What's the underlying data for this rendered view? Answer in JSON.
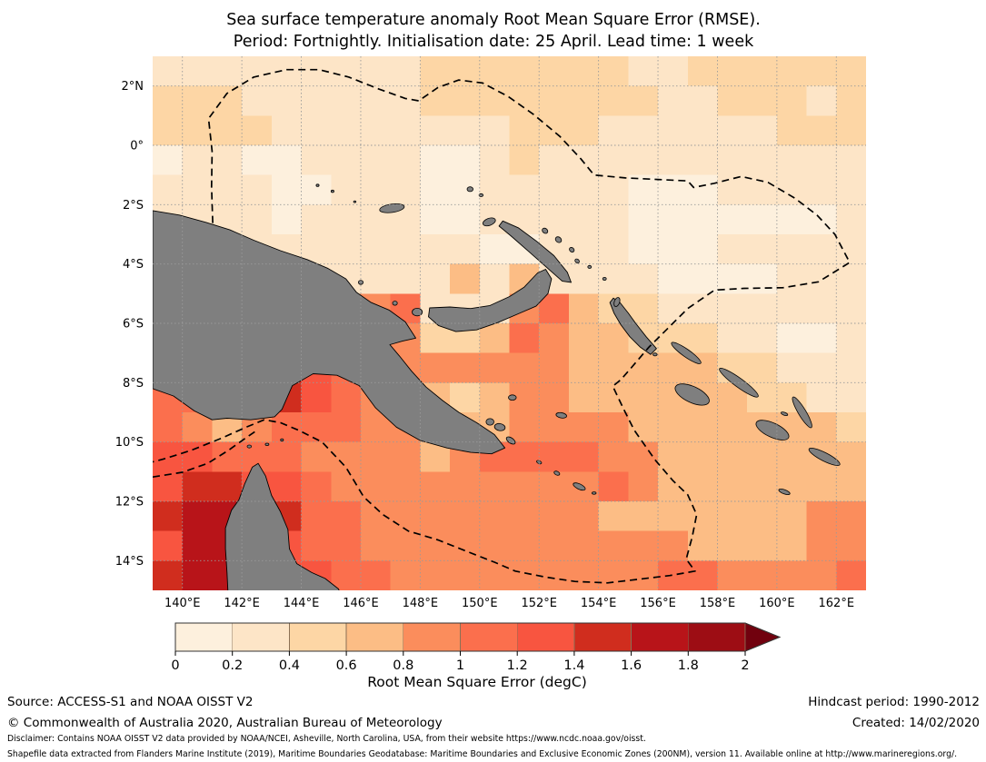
{
  "title": {
    "line1": "Sea surface temperature anomaly Root Mean Square Error (RMSE).",
    "line2": "Period: Fortnightly. Initialisation date: 25 April. Lead time: 1 week"
  },
  "colorbar": {
    "label": "Root Mean Square Error (degC)",
    "ticks": [
      "0",
      "0.2",
      "0.4",
      "0.6",
      "0.8",
      "1",
      "1.2",
      "1.4",
      "1.6",
      "1.8",
      "2"
    ],
    "colors": [
      "#fdf0dd",
      "#fde5c7",
      "#fdd6a5",
      "#fcbd85",
      "#fb8d5c",
      "#fb6f4d",
      "#f85540",
      "#d02d1e",
      "#b81419",
      "#9d0d14"
    ],
    "arrow_color": "#71010e",
    "edge_color": "#8a7055"
  },
  "footer": {
    "source": "Source: ACCESS-S1 and NOAA OISST V2",
    "hindcast": "Hindcast period: 1990-2012",
    "copyright": "© Commonwealth of Australia 2020, Australian Bureau of Meteorology",
    "created": "Created: 14/02/2020",
    "disclaimer1": "Disclaimer: Contains NOAA OISST V2 data provided by NOAA/NCEI, Asheville, North Carolina, USA, from their website https://www.ncdc.noaa.gov/oisst.",
    "disclaimer2": "Shapefile data extracted from Flanders Marine Institute (2019), Maritime Boundaries Geodatabase: Maritime Boundaries and Exclusive Economic Zones (200NM), version 11. Available online at http://www.marineregions.org/."
  },
  "chart_data": {
    "type": "heatmap",
    "title": "Sea surface temperature anomaly RMSE, fortnightly, init 25 April, lead 1 week",
    "units": "degC",
    "lon_range": [
      139,
      163
    ],
    "lat_range": [
      -15,
      3
    ],
    "cell_size_deg": 1,
    "bin_edges": [
      0,
      0.2,
      0.4,
      0.6,
      0.8,
      1.0,
      1.2,
      1.4,
      1.6,
      1.8,
      2.0
    ],
    "grid_note": "rows north-to-south (3N..15S), 24 cols (139E..163E); digit = RMSE bin index into colorbar.colors",
    "grid_rows": [
      "111111111222222211222222",
      "222111111222222221122212",
      "222211111111222111111222",
      "011001111001211111111111",
      "111100111001111100011111",
      "111101111001111100000001",
      "111111111110011100011111",
      "111111111131311110000111",
      "111111445111453221111111",
      "654444454223543322211001",
      "666676544444443333322111",
      "556676544323443333332211",
      "543455544333444433333332",
      "665554444345555443333333",
      "677665444444444543333333",
      "788675544444444333333344",
      "688665544444444444333344",
      "788666554444444445544445"
    ],
    "x_tick_lons": [
      140,
      142,
      144,
      146,
      148,
      150,
      152,
      154,
      156,
      158,
      160,
      162
    ],
    "x_tick_labels": [
      "140°E",
      "142°E",
      "144°E",
      "146°E",
      "148°E",
      "150°E",
      "152°E",
      "154°E",
      "156°E",
      "158°E",
      "160°E",
      "162°E"
    ],
    "y_tick_lats": [
      2,
      0,
      -2,
      -4,
      -6,
      -8,
      -10,
      -12,
      -14
    ],
    "y_tick_labels": [
      "2°N",
      "0°",
      "2°S",
      "4°S",
      "6°S",
      "8°S",
      "10°S",
      "12°S",
      "14°S"
    ],
    "land_color": "#7f7f7f",
    "coast_color": "#000000",
    "gridline_color": "#9a9a9a",
    "eez_color": "#000000",
    "land_polygons": {
      "new_guinea": [
        [
          139.0,
          -2.2
        ],
        [
          139.9,
          -2.35
        ],
        [
          140.8,
          -2.6
        ],
        [
          141.6,
          -2.85
        ],
        [
          142.4,
          -3.2
        ],
        [
          143.3,
          -3.55
        ],
        [
          144.2,
          -3.85
        ],
        [
          144.9,
          -4.15
        ],
        [
          145.5,
          -4.5
        ],
        [
          145.85,
          -4.95
        ],
        [
          146.35,
          -5.3
        ],
        [
          146.95,
          -5.55
        ],
        [
          147.5,
          -5.95
        ],
        [
          147.85,
          -6.5
        ],
        [
          147.4,
          -6.6
        ],
        [
          146.98,
          -6.72
        ],
        [
          147.3,
          -7.1
        ],
        [
          147.7,
          -7.6
        ],
        [
          148.2,
          -8.15
        ],
        [
          148.75,
          -8.6
        ],
        [
          149.3,
          -9.0
        ],
        [
          149.9,
          -9.35
        ],
        [
          150.5,
          -9.75
        ],
        [
          150.85,
          -10.2
        ],
        [
          150.4,
          -10.4
        ],
        [
          149.7,
          -10.35
        ],
        [
          148.9,
          -10.2
        ],
        [
          148.0,
          -9.95
        ],
        [
          147.2,
          -9.5
        ],
        [
          146.5,
          -8.85
        ],
        [
          145.95,
          -8.1
        ],
        [
          145.2,
          -7.75
        ],
        [
          144.4,
          -7.7
        ],
        [
          143.7,
          -8.1
        ],
        [
          143.35,
          -8.9
        ],
        [
          143.1,
          -9.15
        ],
        [
          142.3,
          -9.25
        ],
        [
          141.5,
          -9.2
        ],
        [
          141.0,
          -9.25
        ],
        [
          140.4,
          -8.95
        ],
        [
          139.7,
          -8.45
        ],
        [
          139.0,
          -8.2
        ]
      ],
      "australia_cape_york": [
        [
          141.55,
          -15.4
        ],
        [
          141.5,
          -14.4
        ],
        [
          141.45,
          -13.6
        ],
        [
          141.45,
          -12.9
        ],
        [
          141.65,
          -12.3
        ],
        [
          141.9,
          -11.95
        ],
        [
          142.1,
          -11.4
        ],
        [
          142.35,
          -10.85
        ],
        [
          142.55,
          -10.72
        ],
        [
          142.8,
          -11.15
        ],
        [
          143.0,
          -11.8
        ],
        [
          143.3,
          -12.35
        ],
        [
          143.55,
          -12.95
        ],
        [
          143.6,
          -13.6
        ],
        [
          143.85,
          -14.1
        ],
        [
          144.35,
          -14.4
        ],
        [
          144.8,
          -14.6
        ],
        [
          145.25,
          -14.95
        ],
        [
          145.45,
          -15.4
        ]
      ],
      "new_britain": [
        [
          148.32,
          -5.48
        ],
        [
          149.0,
          -5.45
        ],
        [
          149.7,
          -5.5
        ],
        [
          150.35,
          -5.4
        ],
        [
          151.0,
          -5.1
        ],
        [
          151.5,
          -4.78
        ],
        [
          151.95,
          -4.3
        ],
        [
          152.22,
          -4.18
        ],
        [
          152.42,
          -4.5
        ],
        [
          152.3,
          -5.0
        ],
        [
          151.9,
          -5.42
        ],
        [
          151.3,
          -5.68
        ],
        [
          150.6,
          -5.98
        ],
        [
          149.9,
          -6.22
        ],
        [
          149.2,
          -6.28
        ],
        [
          148.62,
          -6.08
        ],
        [
          148.28,
          -5.78
        ]
      ],
      "new_ireland": [
        [
          150.78,
          -2.55
        ],
        [
          151.3,
          -2.78
        ],
        [
          151.9,
          -3.22
        ],
        [
          152.5,
          -3.72
        ],
        [
          152.95,
          -4.28
        ],
        [
          153.08,
          -4.62
        ],
        [
          152.78,
          -4.58
        ],
        [
          152.35,
          -4.2
        ],
        [
          151.7,
          -3.62
        ],
        [
          151.05,
          -3.05
        ],
        [
          150.65,
          -2.72
        ]
      ],
      "bougainville": [
        [
          154.5,
          -5.15
        ],
        [
          154.72,
          -5.3
        ],
        [
          155.0,
          -5.65
        ],
        [
          155.25,
          -6.0
        ],
        [
          155.6,
          -6.45
        ],
        [
          155.95,
          -6.85
        ],
        [
          155.75,
          -7.05
        ],
        [
          155.4,
          -6.8
        ],
        [
          155.05,
          -6.45
        ],
        [
          154.75,
          -6.05
        ],
        [
          154.52,
          -5.65
        ],
        [
          154.38,
          -5.3
        ]
      ]
    },
    "islands": [
      [
        147.05,
        -2.12,
        0.42,
        0.14,
        -8
      ],
      [
        149.68,
        -1.48,
        0.1,
        0.08,
        0
      ],
      [
        150.05,
        -1.68,
        0.07,
        0.05,
        0
      ],
      [
        150.32,
        -2.58,
        0.22,
        0.12,
        -20
      ],
      [
        152.2,
        -2.88,
        0.1,
        0.08,
        40
      ],
      [
        152.65,
        -3.18,
        0.11,
        0.09,
        40
      ],
      [
        153.1,
        -3.52,
        0.09,
        0.07,
        40
      ],
      [
        153.28,
        -3.9,
        0.08,
        0.06,
        40
      ],
      [
        153.7,
        -4.1,
        0.06,
        0.05,
        0
      ],
      [
        154.2,
        -4.5,
        0.06,
        0.05,
        0
      ],
      [
        147.9,
        -5.62,
        0.17,
        0.13,
        0
      ],
      [
        146.0,
        -4.62,
        0.08,
        0.07,
        0
      ],
      [
        147.15,
        -5.32,
        0.08,
        0.07,
        0
      ],
      [
        154.62,
        -5.28,
        0.09,
        0.16,
        20
      ],
      [
        155.9,
        -7.05,
        0.07,
        0.05,
        0
      ],
      [
        156.95,
        -7.0,
        0.6,
        0.13,
        35
      ],
      [
        158.72,
        -8.0,
        0.8,
        0.15,
        36
      ],
      [
        157.15,
        -8.4,
        0.62,
        0.27,
        25
      ],
      [
        160.85,
        -9.0,
        0.6,
        0.13,
        59
      ],
      [
        159.85,
        -9.6,
        0.6,
        0.24,
        25
      ],
      [
        160.25,
        -9.05,
        0.12,
        0.05,
        20
      ],
      [
        161.6,
        -10.5,
        0.58,
        0.14,
        27
      ],
      [
        160.25,
        -11.68,
        0.2,
        0.07,
        20
      ],
      [
        152.75,
        -9.1,
        0.18,
        0.09,
        10
      ],
      [
        151.1,
        -8.5,
        0.13,
        0.09,
        0
      ],
      [
        150.35,
        -9.32,
        0.13,
        0.11,
        0
      ],
      [
        150.68,
        -9.5,
        0.18,
        0.12,
        10
      ],
      [
        151.05,
        -9.95,
        0.17,
        0.09,
        35
      ],
      [
        152.0,
        -10.68,
        0.09,
        0.05,
        25
      ],
      [
        152.6,
        -11.05,
        0.1,
        0.06,
        25
      ],
      [
        153.35,
        -11.5,
        0.22,
        0.09,
        25
      ],
      [
        153.85,
        -11.72,
        0.07,
        0.04,
        0
      ],
      [
        142.25,
        -10.15,
        0.07,
        0.05,
        0
      ],
      [
        142.85,
        -10.08,
        0.06,
        0.04,
        0
      ],
      [
        143.35,
        -9.93,
        0.05,
        0.04,
        0
      ],
      [
        144.55,
        -1.35,
        0.05,
        0.04,
        0
      ],
      [
        145.05,
        -1.55,
        0.05,
        0.04,
        0
      ],
      [
        145.8,
        -1.9,
        0.04,
        0.03,
        0
      ]
    ],
    "eez_paths": [
      [
        [
          141.02,
          -2.62
        ],
        [
          140.98,
          -1.4
        ],
        [
          141.0,
          -0.2
        ],
        [
          140.88,
          0.9
        ],
        [
          141.5,
          1.75
        ],
        [
          142.4,
          2.3
        ],
        [
          143.5,
          2.55
        ],
        [
          144.6,
          2.55
        ],
        [
          145.6,
          2.3
        ],
        [
          146.6,
          1.9
        ],
        [
          147.5,
          1.58
        ],
        [
          147.95,
          1.5
        ],
        [
          148.6,
          1.95
        ],
        [
          149.3,
          2.2
        ],
        [
          150.1,
          2.1
        ],
        [
          150.95,
          1.65
        ],
        [
          151.8,
          1.05
        ],
        [
          152.7,
          0.3
        ],
        [
          153.4,
          -0.45
        ],
        [
          153.85,
          -1.0
        ],
        [
          154.9,
          -1.1
        ],
        [
          156.0,
          -1.15
        ],
        [
          157.0,
          -1.2
        ],
        [
          157.2,
          -1.42
        ],
        [
          157.9,
          -1.28
        ],
        [
          158.8,
          -1.05
        ],
        [
          159.7,
          -1.25
        ],
        [
          160.6,
          -1.78
        ],
        [
          161.35,
          -2.35
        ],
        [
          161.95,
          -3.0
        ],
        [
          162.45,
          -3.95
        ],
        [
          161.4,
          -4.6
        ],
        [
          160.2,
          -4.8
        ],
        [
          158.9,
          -4.82
        ],
        [
          157.9,
          -4.88
        ],
        [
          157.0,
          -5.5
        ],
        [
          156.2,
          -6.3
        ],
        [
          155.7,
          -6.8
        ],
        [
          155.1,
          -7.5
        ],
        [
          154.75,
          -7.9
        ],
        [
          154.48,
          -8.12
        ],
        [
          154.85,
          -8.9
        ],
        [
          155.2,
          -9.6
        ],
        [
          155.9,
          -10.6
        ],
        [
          156.5,
          -11.3
        ],
        [
          157.0,
          -11.78
        ],
        [
          157.3,
          -12.45
        ],
        [
          157.15,
          -13.2
        ],
        [
          156.95,
          -13.95
        ],
        [
          157.25,
          -14.35
        ],
        [
          156.4,
          -14.5
        ],
        [
          155.4,
          -14.62
        ],
        [
          154.3,
          -14.75
        ],
        [
          153.2,
          -14.7
        ],
        [
          152.2,
          -14.55
        ],
        [
          151.2,
          -14.35
        ],
        [
          150.5,
          -14.05
        ],
        [
          149.6,
          -13.7
        ],
        [
          148.6,
          -13.3
        ],
        [
          147.6,
          -13.0
        ],
        [
          146.75,
          -12.45
        ],
        [
          146.1,
          -11.85
        ],
        [
          145.5,
          -10.85
        ],
        [
          144.7,
          -10.0
        ],
        [
          143.95,
          -9.62
        ],
        [
          143.3,
          -9.35
        ],
        [
          142.75,
          -9.25
        ],
        [
          142.15,
          -9.5
        ],
        [
          141.3,
          -9.88
        ],
        [
          140.3,
          -10.28
        ],
        [
          139.35,
          -10.58
        ],
        [
          139.0,
          -10.67
        ]
      ],
      [
        [
          139.0,
          -11.18
        ],
        [
          140.0,
          -11.02
        ],
        [
          140.85,
          -10.72
        ],
        [
          141.55,
          -10.28
        ],
        [
          142.15,
          -9.85
        ],
        [
          142.55,
          -9.58
        ]
      ]
    ]
  }
}
